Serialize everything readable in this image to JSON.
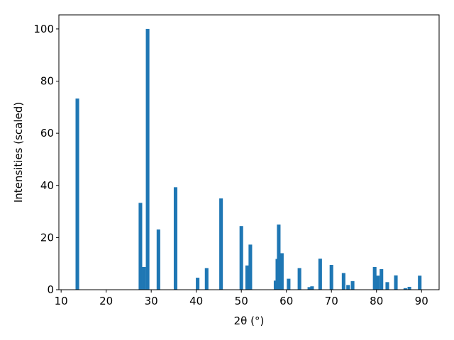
{
  "chart_data": {
    "type": "bar",
    "xlabel": "2θ (°)",
    "ylabel": "Intensities (scaled)",
    "x": [
      13.6,
      27.6,
      28.4,
      29.2,
      31.6,
      35.4,
      40.3,
      42.3,
      45.5,
      50.0,
      51.3,
      52.0,
      57.6,
      58.0,
      58.3,
      59.0,
      60.5,
      62.9,
      65.1,
      65.7,
      67.5,
      70.0,
      72.7,
      73.7,
      74.7,
      79.6,
      80.3,
      81.1,
      82.4,
      84.3,
      86.4,
      87.3,
      89.6
    ],
    "values": [
      73.3,
      33.3,
      8.7,
      100,
      23.1,
      39.3,
      4.6,
      8.3,
      35,
      24.4,
      9.3,
      17.3,
      3.5,
      11.8,
      25,
      14,
      4.2,
      8.3,
      1,
      1.3,
      11.9,
      9.5,
      6.4,
      1.8,
      3.3,
      8.7,
      5.4,
      7.9,
      2.9,
      5.5,
      0.6,
      1.1,
      5.4
    ],
    "color": "#1f77b4",
    "bar_width": 0.8,
    "xlim": [
      9.5,
      93.9
    ],
    "xticks": [
      10,
      20,
      30,
      40,
      50,
      60,
      70,
      80,
      90
    ],
    "ylim": [
      0,
      105.4
    ],
    "yticks": [
      0,
      20,
      40,
      60,
      80,
      100
    ]
  }
}
